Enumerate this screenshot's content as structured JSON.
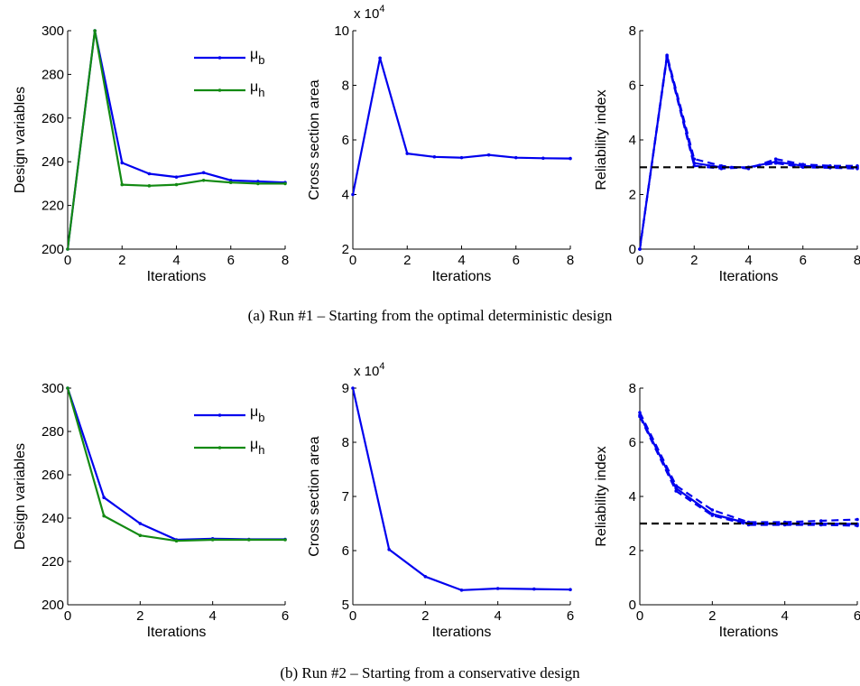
{
  "captions": {
    "run1": "(a)  Run #1 – Starting from the optimal deterministic design",
    "run2": "(b)  Run #2 – Starting from a conservative design"
  },
  "colors": {
    "blue": "#0000ee",
    "green": "#138a13",
    "black": "#000000"
  },
  "chart_data": [
    {
      "type": "line",
      "xlabel": "Iterations",
      "ylabel": "Design variables",
      "xlim": [
        0,
        8
      ],
      "ylim": [
        200,
        300
      ],
      "xticks": [
        "0",
        "2",
        "4",
        "6",
        "8"
      ],
      "yticks": [
        "200",
        "220",
        "240",
        "260",
        "280",
        "300"
      ],
      "legend": "top-right",
      "series": [
        {
          "name": "μb",
          "label_main": "μ",
          "label_sub": "b",
          "style": "solid",
          "color": "blue",
          "x": [
            0,
            1,
            2,
            3,
            4,
            5,
            6,
            7,
            8
          ],
          "y": [
            200,
            300,
            239.5,
            234.5,
            233,
            235,
            231.5,
            231,
            230.5
          ]
        },
        {
          "name": "μh",
          "label_main": "μ",
          "label_sub": "h",
          "style": "solid",
          "color": "green",
          "x": [
            0,
            1,
            2,
            3,
            4,
            5,
            6,
            7,
            8
          ],
          "y": [
            200,
            300,
            229.5,
            229,
            229.5,
            231.5,
            230.5,
            230,
            230
          ]
        }
      ]
    },
    {
      "type": "line",
      "xlabel": "Iterations",
      "ylabel": "Cross section area",
      "multiplier": "x 10",
      "multiplier_exp": "4",
      "xlim": [
        0,
        8
      ],
      "ylim": [
        2,
        10
      ],
      "xticks": [
        "0",
        "2",
        "4",
        "6",
        "8"
      ],
      "yticks": [
        "2",
        "4",
        "6",
        "8",
        "10"
      ],
      "series": [
        {
          "style": "solid",
          "color": "blue",
          "x": [
            0,
            1,
            2,
            3,
            4,
            5,
            6,
            7,
            8
          ],
          "y": [
            4.0,
            9.0,
            5.5,
            5.38,
            5.35,
            5.45,
            5.35,
            5.33,
            5.32
          ]
        }
      ]
    },
    {
      "type": "line",
      "xlabel": "Iterations",
      "ylabel": "Reliability index",
      "xlim": [
        0,
        8
      ],
      "ylim": [
        0,
        8
      ],
      "xticks": [
        "0",
        "2",
        "4",
        "6",
        "8"
      ],
      "yticks": [
        "0",
        "2",
        "4",
        "6",
        "8"
      ],
      "series": [
        {
          "style": "solid",
          "color": "blue",
          "x": [
            0,
            1,
            2,
            3,
            4,
            5,
            6,
            7,
            8
          ],
          "y": [
            0,
            7.05,
            3.15,
            3.0,
            3.0,
            3.2,
            3.05,
            3.0,
            3.0
          ]
        },
        {
          "style": "dashed",
          "color": "blue",
          "x": [
            0,
            1,
            2,
            3,
            4,
            5,
            6,
            7,
            8
          ],
          "y": [
            0,
            7.1,
            3.3,
            3.05,
            2.95,
            3.3,
            3.1,
            3.05,
            3.05
          ]
        },
        {
          "style": "dashed",
          "color": "blue",
          "x": [
            0,
            1,
            2,
            3,
            4,
            5,
            6,
            7,
            8
          ],
          "y": [
            0,
            7.0,
            3.05,
            2.95,
            3.0,
            3.15,
            3.0,
            2.98,
            2.95
          ]
        },
        {
          "style": "dashed",
          "color": "black",
          "x": [
            0,
            8
          ],
          "y": [
            3,
            3
          ]
        }
      ]
    },
    {
      "type": "line",
      "xlabel": "Iterations",
      "ylabel": "Design variables",
      "xlim": [
        0,
        6
      ],
      "ylim": [
        200,
        300
      ],
      "xticks": [
        "0",
        "2",
        "4",
        "6"
      ],
      "yticks": [
        "200",
        "220",
        "240",
        "260",
        "280",
        "300"
      ],
      "legend": "top-right",
      "series": [
        {
          "name": "μb",
          "label_main": "μ",
          "label_sub": "b",
          "style": "solid",
          "color": "blue",
          "x": [
            0,
            1,
            2,
            3,
            4,
            5,
            6
          ],
          "y": [
            300,
            249.5,
            237.5,
            230,
            230.5,
            230.2,
            230.2
          ]
        },
        {
          "name": "μh",
          "label_main": "μ",
          "label_sub": "h",
          "style": "solid",
          "color": "green",
          "x": [
            0,
            1,
            2,
            3,
            4,
            5,
            6
          ],
          "y": [
            300,
            241,
            232,
            229.5,
            230,
            230,
            230
          ]
        }
      ]
    },
    {
      "type": "line",
      "xlabel": "Iterations",
      "ylabel": "Cross section area",
      "multiplier": "x 10",
      "multiplier_exp": "4",
      "xlim": [
        0,
        6
      ],
      "ylim": [
        5,
        9
      ],
      "xticks": [
        "0",
        "2",
        "4",
        "6"
      ],
      "yticks": [
        "5",
        "6",
        "7",
        "8",
        "9"
      ],
      "series": [
        {
          "style": "solid",
          "color": "blue",
          "x": [
            0,
            1,
            2,
            3,
            4,
            5,
            6
          ],
          "y": [
            9.0,
            6.02,
            5.52,
            5.27,
            5.3,
            5.29,
            5.28
          ]
        }
      ]
    },
    {
      "type": "line",
      "xlabel": "Iterations",
      "ylabel": "Reliability index",
      "xlim": [
        0,
        6
      ],
      "ylim": [
        0,
        8
      ],
      "xticks": [
        "0",
        "2",
        "4",
        "6"
      ],
      "yticks": [
        "0",
        "2",
        "4",
        "6",
        "8"
      ],
      "series": [
        {
          "style": "solid",
          "color": "blue",
          "x": [
            0,
            1,
            2,
            3,
            4,
            5,
            6
          ],
          "y": [
            7.0,
            4.3,
            3.35,
            3.0,
            2.98,
            3.0,
            2.98
          ]
        },
        {
          "style": "dashed",
          "color": "blue",
          "x": [
            0,
            1,
            2,
            3,
            4,
            5,
            6
          ],
          "y": [
            7.1,
            4.4,
            3.5,
            3.05,
            3.05,
            3.1,
            3.15
          ]
        },
        {
          "style": "dashed",
          "color": "blue",
          "x": [
            0,
            1,
            2,
            3,
            4,
            5,
            6
          ],
          "y": [
            6.95,
            4.2,
            3.3,
            2.95,
            2.95,
            2.95,
            2.92
          ]
        },
        {
          "style": "dashed",
          "color": "black",
          "x": [
            0,
            6
          ],
          "y": [
            3,
            3
          ]
        }
      ]
    }
  ]
}
